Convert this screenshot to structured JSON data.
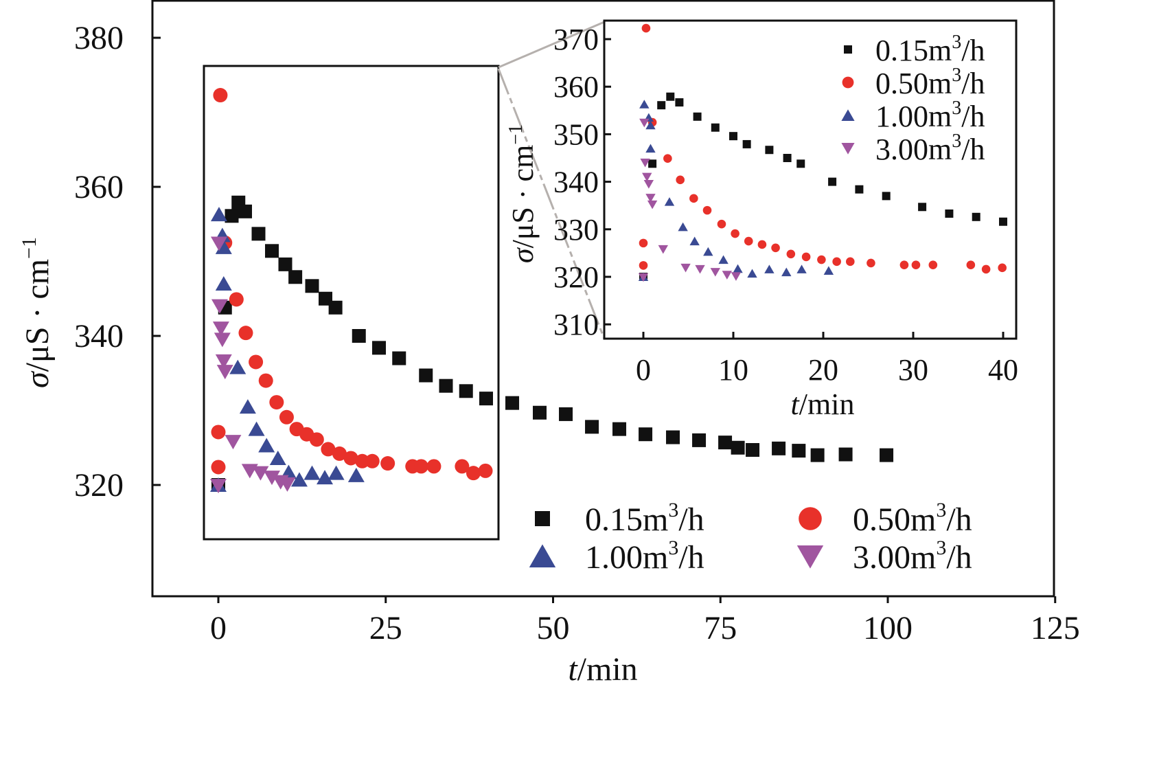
{
  "chart_data": [
    {
      "type": "scatter",
      "xlabel_italic": "t",
      "xlabel_rest": "/min",
      "ylabel_italic": "σ",
      "ylabel_rest": "/μS · cm",
      "ylabel_sup": "−1",
      "xlim": [
        -10,
        125
      ],
      "ylim": [
        300,
        385
      ],
      "xticks": [
        0,
        25,
        50,
        75,
        100,
        125
      ],
      "yticks": [
        320,
        340,
        360,
        380
      ],
      "grid": false,
      "legend_placement": "bottom-right",
      "series": [
        {
          "name": "0.15m³/h",
          "label_main": "0.15m",
          "label_sup": "3",
          "label_tail": "/h",
          "marker": "square",
          "color": "#111111",
          "x": [
            0,
            1,
            2,
            3,
            4,
            6,
            8,
            10,
            11.5,
            14,
            16,
            17.5,
            21,
            24,
            27,
            31,
            34,
            37,
            40,
            43.9,
            48,
            51.9,
            55.8,
            59.9,
            63.8,
            67.9,
            71.8,
            75.7,
            77.6,
            79.8,
            83.7,
            86.7,
            89.5,
            93.7,
            99.8
          ],
          "y": [
            320,
            343.8,
            356.1,
            357.9,
            356.7,
            353.7,
            351.4,
            349.6,
            347.9,
            346.7,
            345,
            343.8,
            340,
            338.4,
            337,
            334.7,
            333.3,
            332.6,
            331.6,
            331,
            329.7,
            329.5,
            327.8,
            327.5,
            326.8,
            326.4,
            326,
            325.7,
            325,
            324.7,
            324.9,
            324.6,
            324,
            324.1,
            324
          ]
        },
        {
          "name": "0.50m³/h",
          "label_main": "0.50m",
          "label_sup": "3",
          "label_tail": "/h",
          "marker": "circle",
          "color": "#e8312a",
          "x": [
            0.3,
            0,
            0,
            1,
            2.7,
            4.1,
            5.6,
            7.1,
            8.7,
            10.2,
            11.7,
            13.2,
            14.7,
            16.4,
            18.1,
            19.8,
            21.5,
            23,
            25.3,
            29,
            30.3,
            32.2,
            36.4,
            38.1,
            39.9
          ],
          "y": [
            372.3,
            327.1,
            322.4,
            352.5,
            344.9,
            340.4,
            336.5,
            334,
            331.1,
            329.1,
            327.5,
            326.8,
            326.1,
            324.8,
            324.2,
            323.6,
            323.2,
            323.2,
            322.9,
            322.5,
            322.5,
            322.5,
            322.5,
            321.6,
            321.9
          ]
        },
        {
          "name": "1.00m³/h",
          "label_main": "1.00m",
          "label_sup": "3",
          "label_tail": "/h",
          "marker": "triangle-up",
          "color": "#3a4a93",
          "x": [
            0,
            0.1,
            0.6,
            0.8,
            0.8,
            2.9,
            4.4,
            5.7,
            7.2,
            8.9,
            10.5,
            12.1,
            14,
            15.9,
            17.6,
            20.6
          ],
          "y": [
            320,
            356.3,
            353.5,
            351.9,
            347,
            335.8,
            330.5,
            327.5,
            325.3,
            323.6,
            321.7,
            320.7,
            321.6,
            321,
            321.6,
            321.3
          ]
        },
        {
          "name": "3.00m³/h",
          "label_main": "3.00m",
          "label_sup": "3",
          "label_tail": "/h",
          "marker": "triangle-down",
          "color": "#a0559f",
          "x": [
            0,
            0.1,
            0.2,
            0.4,
            0.6,
            0.8,
            1,
            2.2,
            4.7,
            6.3,
            8,
            9.3,
            10.3
          ],
          "y": [
            319.9,
            352.4,
            344,
            341,
            339.5,
            336.6,
            335.2,
            325.8,
            321.9,
            321.6,
            321,
            320.4,
            320.1
          ]
        }
      ]
    },
    {
      "type": "scatter",
      "inset": true,
      "xlim": [
        -4.5,
        41.5
      ],
      "ylim": [
        305,
        373
      ],
      "xticks": [
        0,
        10,
        20,
        30,
        40
      ],
      "yticks": [
        310,
        320,
        330,
        340,
        350,
        360,
        370
      ],
      "xlabel_italic": "t",
      "xlabel_rest": "/min",
      "ylabel_italic": "σ",
      "ylabel_rest": "/μS · cm",
      "ylabel_sup": "−1",
      "legend_placement": "top-right",
      "grid": false
    }
  ]
}
